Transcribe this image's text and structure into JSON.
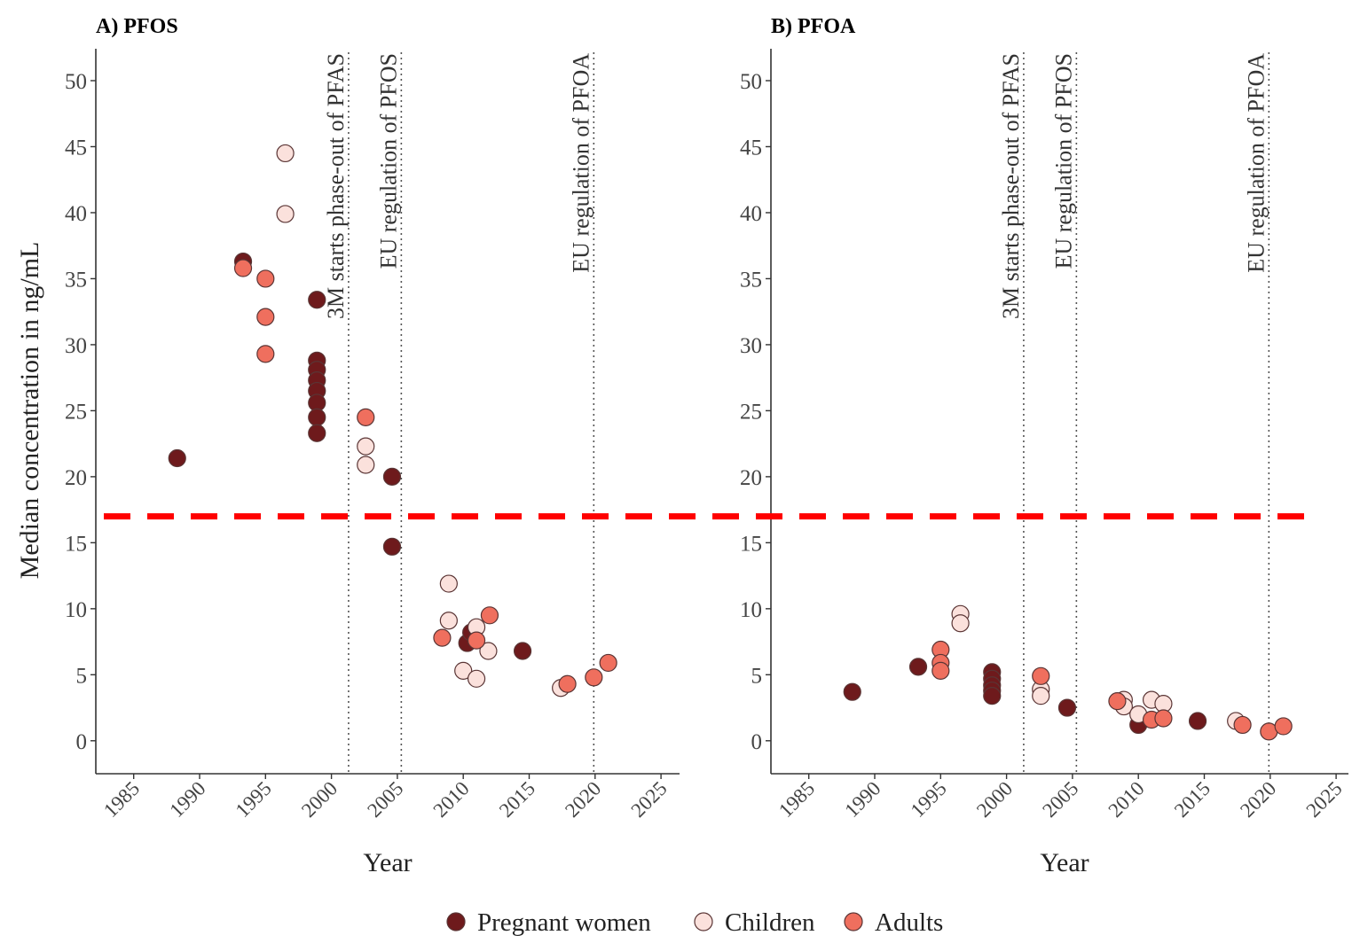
{
  "figure": {
    "ylabel": "Median concentration in ng/mL",
    "legend": {
      "placement": "bottom",
      "items": [
        {
          "group": "pregnant",
          "label": "Pregnant women"
        },
        {
          "group": "children",
          "label": "Children"
        },
        {
          "group": "adults",
          "label": "Adults"
        }
      ]
    },
    "colors": {
      "pregnant": "#6e1a1c",
      "children": "#fbe1dc",
      "adults": "#ef6f5e",
      "reference_line": "#ff0000",
      "marker_edge": "#5a3535"
    }
  },
  "chart_data": [
    {
      "type": "scatter",
      "title": "A) PFOS",
      "xlabel": "Year",
      "xlim": [
        1983,
        2026
      ],
      "ylim": [
        -2.5,
        52.5
      ],
      "xticks": [
        1985,
        1990,
        1995,
        2000,
        2005,
        2010,
        2015,
        2020,
        2025
      ],
      "yticks": [
        0,
        5,
        10,
        15,
        20,
        25,
        30,
        35,
        40,
        45,
        50
      ],
      "grid": false,
      "reference_line": {
        "y": 17,
        "style": "dashed",
        "color": "#ff0000"
      },
      "annotations": [
        {
          "x": 2001.3,
          "label": "3M starts phase-out of PFAS"
        },
        {
          "x": 2005.3,
          "label": "EU regulation of PFOS"
        },
        {
          "x": 2019.9,
          "label": "EU regulation of PFOA"
        }
      ],
      "series": [
        {
          "name": "Pregnant women",
          "group": "pregnant",
          "points": [
            [
              1988.3,
              21.4
            ],
            [
              1993.3,
              36.3
            ],
            [
              1998.9,
              33.4
            ],
            [
              1998.9,
              28.8
            ],
            [
              1998.9,
              28.1
            ],
            [
              1998.9,
              27.3
            ],
            [
              1998.9,
              26.5
            ],
            [
              1998.9,
              25.6
            ],
            [
              1998.9,
              24.5
            ],
            [
              1998.9,
              23.3
            ],
            [
              2004.6,
              20.0
            ],
            [
              2004.6,
              14.7
            ],
            [
              2010.3,
              7.4
            ],
            [
              2010.6,
              8.2
            ],
            [
              2014.5,
              6.8
            ]
          ]
        },
        {
          "name": "Children",
          "group": "children",
          "points": [
            [
              1996.5,
              44.5
            ],
            [
              1996.5,
              39.9
            ],
            [
              2002.6,
              22.3
            ],
            [
              2002.6,
              20.9
            ],
            [
              2008.9,
              11.9
            ],
            [
              2008.9,
              9.1
            ],
            [
              2010.0,
              5.3
            ],
            [
              2011.0,
              4.7
            ],
            [
              2011.0,
              8.6
            ],
            [
              2011.9,
              6.8
            ],
            [
              2017.4,
              4.0
            ]
          ]
        },
        {
          "name": "Adults",
          "group": "adults",
          "points": [
            [
              1993.3,
              35.8
            ],
            [
              1995.0,
              35.0
            ],
            [
              1995.0,
              32.1
            ],
            [
              1995.0,
              29.3
            ],
            [
              2002.6,
              24.5
            ],
            [
              2008.4,
              7.8
            ],
            [
              2011.0,
              7.6
            ],
            [
              2012.0,
              9.5
            ],
            [
              2017.9,
              4.3
            ],
            [
              2019.9,
              4.8
            ],
            [
              2021.0,
              5.9
            ]
          ]
        }
      ]
    },
    {
      "type": "scatter",
      "title": "B) PFOA",
      "xlabel": "Year",
      "xlim": [
        1983,
        2026
      ],
      "ylim": [
        -2.5,
        52.5
      ],
      "xticks": [
        1985,
        1990,
        1995,
        2000,
        2005,
        2010,
        2015,
        2020,
        2025
      ],
      "yticks": [
        0,
        5,
        10,
        15,
        20,
        25,
        30,
        35,
        40,
        45,
        50
      ],
      "grid": false,
      "reference_line": {
        "y": 17,
        "style": "dashed",
        "color": "#ff0000"
      },
      "annotations": [
        {
          "x": 2001.3,
          "label": "3M starts phase-out of PFAS"
        },
        {
          "x": 2005.3,
          "label": "EU regulation of PFOS"
        },
        {
          "x": 2019.9,
          "label": "EU regulation of PFOA"
        }
      ],
      "series": [
        {
          "name": "Pregnant women",
          "group": "pregnant",
          "points": [
            [
              1988.3,
              3.7
            ],
            [
              1993.3,
              5.6
            ],
            [
              1998.9,
              5.2
            ],
            [
              1998.9,
              4.7
            ],
            [
              1998.9,
              4.2
            ],
            [
              1998.9,
              3.8
            ],
            [
              1998.9,
              3.4
            ],
            [
              2004.6,
              2.5
            ],
            [
              2010.0,
              1.2
            ],
            [
              2014.5,
              1.5
            ]
          ]
        },
        {
          "name": "Children",
          "group": "children",
          "points": [
            [
              1996.5,
              9.6
            ],
            [
              1996.5,
              8.9
            ],
            [
              2002.6,
              3.9
            ],
            [
              2002.6,
              3.4
            ],
            [
              2008.9,
              3.1
            ],
            [
              2008.9,
              2.6
            ],
            [
              2010.0,
              2.0
            ],
            [
              2011.0,
              3.1
            ],
            [
              2011.9,
              2.8
            ],
            [
              2017.4,
              1.5
            ]
          ]
        },
        {
          "name": "Adults",
          "group": "adults",
          "points": [
            [
              1995.0,
              6.9
            ],
            [
              1995.0,
              5.9
            ],
            [
              1995.0,
              5.3
            ],
            [
              2002.6,
              4.9
            ],
            [
              2008.4,
              3.0
            ],
            [
              2011.0,
              1.6
            ],
            [
              2011.9,
              1.7
            ],
            [
              2017.9,
              1.2
            ],
            [
              2019.9,
              0.7
            ],
            [
              2021.0,
              1.1
            ]
          ]
        }
      ]
    }
  ]
}
